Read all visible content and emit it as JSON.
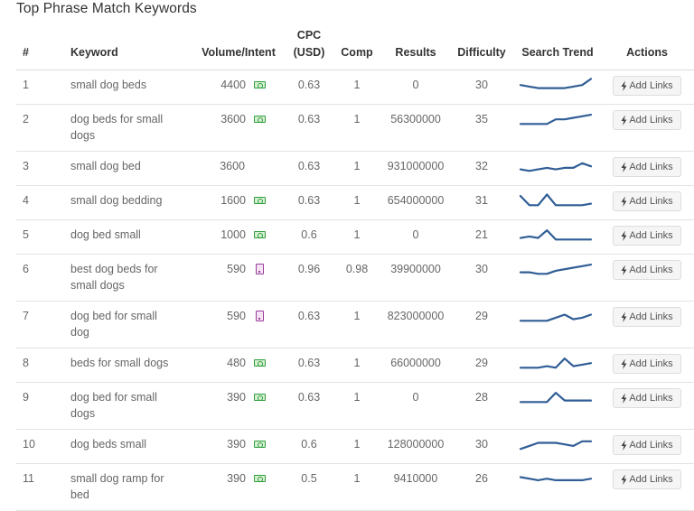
{
  "title": "Top Phrase Match Keywords",
  "columns": {
    "num": "#",
    "keyword": "Keyword",
    "volume": "Volume/Intent",
    "cpc_line1": "CPC",
    "cpc_line2": "(USD)",
    "comp": "Comp",
    "results": "Results",
    "difficulty": "Difficulty",
    "trend": "Search Trend",
    "actions": "Actions"
  },
  "action_label": "Add Links",
  "icons": {
    "commercial": "money-bill-icon",
    "informational": "document-icon",
    "action": "bolt-icon"
  },
  "colors": {
    "trend_line": "#2f5d95",
    "commercial_intent": "#2e9e3e",
    "informational_intent": "#9b3e9b"
  },
  "rows": [
    {
      "num": "1",
      "keyword": "small dog beds",
      "volume": "4400",
      "intent": "commercial",
      "cpc": "0.63",
      "comp": "1",
      "results": "0",
      "difficulty": "30",
      "trend": [
        6,
        7,
        8,
        8,
        8,
        8,
        7,
        6,
        2
      ]
    },
    {
      "num": "2",
      "keyword": "dog beds for small dogs",
      "volume": "3600",
      "intent": "commercial",
      "cpc": "0.63",
      "comp": "1",
      "results": "56300000",
      "difficulty": "35",
      "trend": [
        9,
        9,
        9,
        9,
        6,
        6,
        5,
        4,
        3
      ]
    },
    {
      "num": "3",
      "keyword": "small dog bed",
      "volume": "3600",
      "intent": "",
      "cpc": "0.63",
      "comp": "1",
      "results": "931000000",
      "difficulty": "32",
      "trend": [
        8,
        9,
        8,
        7,
        8,
        7,
        7,
        4,
        6
      ]
    },
    {
      "num": "4",
      "keyword": "small dog bedding",
      "volume": "1600",
      "intent": "commercial",
      "cpc": "0.63",
      "comp": "1",
      "results": "654000000",
      "difficulty": "31",
      "trend": [
        3,
        9,
        9,
        2,
        9,
        9,
        9,
        9,
        8
      ]
    },
    {
      "num": "5",
      "keyword": "dog bed small",
      "volume": "1000",
      "intent": "commercial",
      "cpc": "0.6",
      "comp": "1",
      "results": "0",
      "difficulty": "21",
      "trend": [
        8,
        7,
        8,
        3,
        9,
        9,
        9,
        9,
        9
      ]
    },
    {
      "num": "6",
      "keyword": "best dog beds for small dogs",
      "volume": "590",
      "intent": "informational",
      "cpc": "0.96",
      "comp": "0.98",
      "results": "39900000",
      "difficulty": "30",
      "trend": [
        8,
        8,
        9,
        9,
        7,
        6,
        5,
        4,
        3
      ]
    },
    {
      "num": "7",
      "keyword": "dog bed for small dog",
      "volume": "590",
      "intent": "informational",
      "cpc": "0.63",
      "comp": "1",
      "results": "823000000",
      "difficulty": "29",
      "trend": [
        9,
        9,
        9,
        9,
        7,
        5,
        8,
        7,
        5
      ]
    },
    {
      "num": "8",
      "keyword": "beds for small dogs",
      "volume": "480",
      "intent": "commercial",
      "cpc": "0.63",
      "comp": "1",
      "results": "66000000",
      "difficulty": "29",
      "trend": [
        9,
        9,
        9,
        8,
        9,
        3,
        8,
        7,
        6
      ]
    },
    {
      "num": "9",
      "keyword": "dog bed for small dogs",
      "volume": "390",
      "intent": "commercial",
      "cpc": "0.63",
      "comp": "1",
      "results": "0",
      "difficulty": "28",
      "trend": [
        9,
        9,
        9,
        9,
        3,
        8,
        8,
        8,
        8
      ]
    },
    {
      "num": "10",
      "keyword": "dog beds small",
      "volume": "390",
      "intent": "commercial",
      "cpc": "0.6",
      "comp": "1",
      "results": "128000000",
      "difficulty": "30",
      "trend": [
        9,
        7,
        5,
        5,
        5,
        6,
        7,
        4,
        4
      ]
    },
    {
      "num": "11",
      "keyword": "small dog ramp for bed",
      "volume": "390",
      "intent": "commercial",
      "cpc": "0.5",
      "comp": "1",
      "results": "9410000",
      "difficulty": "26",
      "trend": [
        5,
        6,
        7,
        6,
        7,
        7,
        7,
        7,
        6
      ]
    }
  ]
}
